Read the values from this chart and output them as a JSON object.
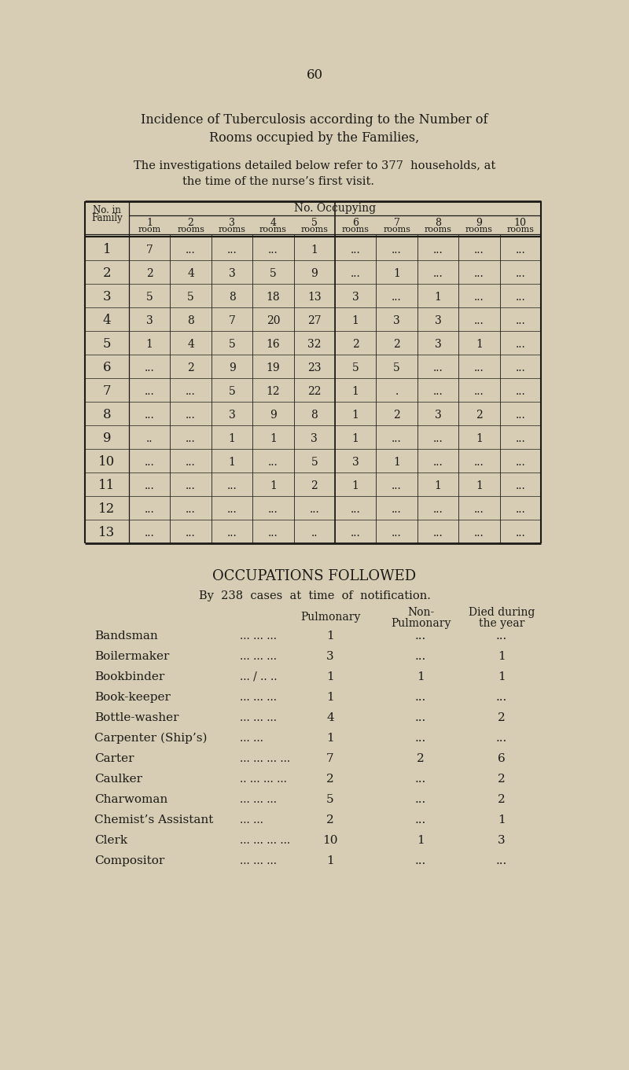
{
  "page_number": "60",
  "bg_color": "#d6cdb4",
  "title_line1": "Incidence of Tuberculosis according to the Number of",
  "title_line2": "Rooms occupied by the Families,",
  "intro1": "The investigations detailed below refer to 377  households, at",
  "intro2": "the time of the nurse’s first visit.",
  "table1_col0_header": [
    "No. in",
    "Family"
  ],
  "table1_top_header": "No. Occupying",
  "table1_col_nums": [
    "1",
    "2",
    "3",
    "4",
    "5",
    "6",
    "7",
    "8",
    "9",
    "10"
  ],
  "table1_col_labels": [
    "room",
    "rooms",
    "rooms",
    "rooms",
    "rooms",
    "rooms",
    "rooms",
    "rooms",
    "rooms",
    "rooms"
  ],
  "table1_rows": [
    [
      "1",
      "7",
      "...",
      "...",
      "...",
      "1",
      "...",
      "...",
      "...",
      "...",
      "..."
    ],
    [
      "2",
      "2",
      "4",
      "3",
      "5",
      "9",
      "...",
      "1",
      "...",
      "...",
      "..."
    ],
    [
      "3",
      "5",
      "5",
      "8",
      "18",
      "13",
      "3",
      "...",
      "1",
      "...",
      "..."
    ],
    [
      "4",
      "3",
      "8",
      "7",
      "20",
      "27",
      "1",
      "3",
      "3",
      "...",
      "..."
    ],
    [
      "5",
      "1",
      "4",
      "5",
      "16",
      "32",
      "2",
      "2",
      "3",
      "1",
      "..."
    ],
    [
      "6",
      "...",
      "2",
      "9",
      "19",
      "23",
      "5",
      "5",
      "...",
      "...",
      "..."
    ],
    [
      "7",
      "...",
      "...",
      "5",
      "12",
      "22",
      "1",
      ".",
      "...",
      "...",
      "..."
    ],
    [
      "8",
      "...",
      "...",
      "3",
      "9",
      "8",
      "1",
      "2",
      "3",
      "2",
      "..."
    ],
    [
      "9",
      "..",
      "...",
      "1",
      "1",
      "3",
      "1",
      "...",
      "...",
      "1",
      "..."
    ],
    [
      "10",
      "...",
      "...",
      "1",
      "...",
      "5",
      "3",
      "1",
      "...",
      "...",
      "..."
    ],
    [
      "11",
      "...",
      "...",
      "...",
      "1",
      "2",
      "1",
      "...",
      "1",
      "1",
      "..."
    ],
    [
      "12",
      "...",
      "...",
      "...",
      "...",
      "...",
      "...",
      "...",
      "...",
      "...",
      "..."
    ],
    [
      "13",
      "...",
      "...",
      "...",
      "...",
      "..",
      "...",
      "...",
      "...",
      "...",
      "..."
    ]
  ],
  "section2_title": "OCCUPATIONS FOLLOWED",
  "section2_sub": "By  238  cases  at  time  of  notification.",
  "occ_col_headers": [
    "Pulmonary",
    "Non-\nPulmonary",
    "Died during\nthe year"
  ],
  "occupations": [
    "Bandsman",
    "Boilermaker",
    "Bookbinder",
    "Book-keeper",
    "Bottle-washer",
    "Carpenter (Ship’s)",
    "Carter",
    "Caulker",
    "Charwoman",
    "Chemist’s Assistant",
    "Clerk",
    "Compositor"
  ],
  "occ_dots": [
    "... ... ...",
    "... ... ...",
    "... / .. ..",
    "... ... ...",
    "... ... ...",
    "... ...",
    "... ... ... ...",
    ".. ... ... ...",
    "... ... ...",
    "... ...",
    "... ... ... ...",
    "... ... ..."
  ],
  "pulmonary": [
    "1",
    "3",
    "1",
    "1",
    "4",
    "1",
    "7",
    "2",
    "5",
    "2",
    "10",
    "1"
  ],
  "non_pulmonary": [
    "...",
    "...",
    "1",
    "...",
    "...",
    "...",
    "2",
    "...",
    "...",
    "...",
    "1",
    "..."
  ],
  "died": [
    "...",
    "1",
    "1",
    "...",
    "2",
    "...",
    "6",
    "2",
    "2",
    "1",
    "3",
    "..."
  ]
}
